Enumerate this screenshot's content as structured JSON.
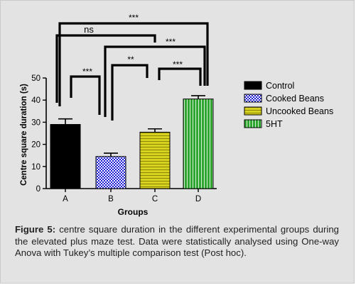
{
  "chart_data": {
    "type": "bar",
    "categories": [
      "A",
      "B",
      "C",
      "D"
    ],
    "values": [
      29,
      14.5,
      25.5,
      40.5
    ],
    "errors": [
      2.5,
      1.5,
      1.5,
      1.5
    ],
    "xlabel": "Groups",
    "ylabel": "Centre square duration (s)",
    "ylim": [
      0,
      50
    ],
    "yticks": [
      "0",
      "10",
      "20",
      "30",
      "40",
      "50"
    ],
    "grid": false,
    "legend_position": "right",
    "legend": [
      {
        "label": "Control",
        "pattern": "solid-black",
        "color": "#000000"
      },
      {
        "label": "Cooked Beans",
        "pattern": "checker-blue",
        "color": "#1a1ad6"
      },
      {
        "label": "Uncooked Beans",
        "pattern": "horizontal-stripes-olive",
        "color": "#c9c418"
      },
      {
        "label": "5HT",
        "pattern": "vertical-stripes-green",
        "color": "#1f9a1f"
      }
    ],
    "comparisons": [
      {
        "groups": [
          "A",
          "D"
        ],
        "label": "***"
      },
      {
        "groups": [
          "A",
          "C"
        ],
        "label": "ns"
      },
      {
        "groups": [
          "B",
          "D"
        ],
        "label": "***"
      },
      {
        "groups": [
          "A",
          "B"
        ],
        "label": "***"
      },
      {
        "groups": [
          "B",
          "C"
        ],
        "label": "**"
      },
      {
        "groups": [
          "C",
          "D"
        ],
        "label": "***"
      }
    ]
  },
  "caption": {
    "figure_label": "Figure 5:",
    "text": " centre square duration in the different experimental groups during the elevated plus maze test. Data were statistically analysed using One-way Anova with Tukey’s multiple comparison test (Post hoc)."
  }
}
